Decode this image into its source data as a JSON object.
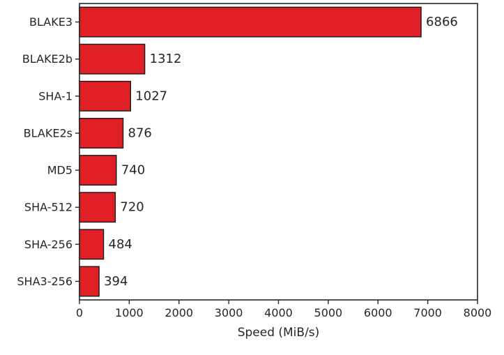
{
  "chart_data": {
    "type": "bar",
    "orientation": "horizontal",
    "categories": [
      "BLAKE3",
      "BLAKE2b",
      "SHA-1",
      "BLAKE2s",
      "MD5",
      "SHA-512",
      "SHA-256",
      "SHA3-256"
    ],
    "values": [
      6866,
      1312,
      1027,
      876,
      740,
      720,
      484,
      394
    ],
    "value_labels": [
      "6866",
      "1312",
      "1027",
      "876",
      "740",
      "720",
      "484",
      "394"
    ],
    "title": "",
    "xlabel": "Speed (MiB/s)",
    "ylabel": "",
    "xlim": [
      0,
      8000
    ],
    "xticks": [
      0,
      1000,
      2000,
      3000,
      4000,
      5000,
      6000,
      7000,
      8000
    ],
    "xtick_labels": [
      "0",
      "1000",
      "2000",
      "3000",
      "4000",
      "5000",
      "6000",
      "7000",
      "8000"
    ],
    "grid": false,
    "bar_color": "#e02025",
    "bar_edge_color": "#1a1a1a"
  }
}
